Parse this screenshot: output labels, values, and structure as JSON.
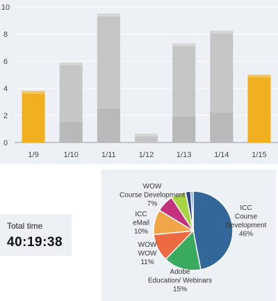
{
  "bar_panel": {
    "chart_data": {
      "type": "bar",
      "categories": [
        "1/9",
        "1/10",
        "1/11",
        "1/12",
        "1/13",
        "1/14",
        "1/15"
      ],
      "series": [
        {
          "values": [
            3.8,
            5.9,
            9.5,
            0.65,
            7.3,
            8.25,
            5.0
          ],
          "colors": [
            "#f0b020",
            "#c6c6c6",
            "#c6c6c6",
            "#c6c6c6",
            "#c6c6c6",
            "#c6c6c6",
            "#f0b020"
          ]
        },
        {
          "values": [
            0,
            1.5,
            2.5,
            0,
            1.9,
            2.2,
            0
          ]
        }
      ],
      "yticks": [
        0,
        2,
        4,
        6,
        8,
        10
      ],
      "ylim": [
        0,
        10
      ],
      "grid": true,
      "highlight_color": "#f0b020",
      "base_color": "#c6c6c6",
      "lower_segment_color": "#b9b9b9"
    }
  },
  "total_time": {
    "label": "Total time",
    "value": "40:19:38"
  },
  "pie_panel": {
    "chart_data": {
      "type": "pie",
      "slices": [
        {
          "label": "ICC Course Development",
          "percent": 46,
          "color": "#336699"
        },
        {
          "label": "Adobe Education/ Webinars",
          "percent": 15,
          "color": "#3aaa5e"
        },
        {
          "label": "WOW WOW",
          "percent": 11,
          "color": "#ee6a40"
        },
        {
          "label": "ICC eMail",
          "percent": 10,
          "color": "#f0a646"
        },
        {
          "label": "WOW Course Development",
          "percent": 7,
          "color": "#c4327e"
        },
        {
          "label": "",
          "percent": 6,
          "color": "#a8d444"
        },
        {
          "label": "",
          "percent": 2,
          "color": "#2f3f8f"
        },
        {
          "label": "",
          "percent": 1,
          "color": "#6aa3dd"
        }
      ],
      "labels": [
        {
          "lines": [
            "ICC",
            "Course",
            "Development",
            "46%"
          ]
        },
        {
          "lines": [
            "Adobe",
            "Education/ Webinars",
            "15%"
          ]
        },
        {
          "lines": [
            "WOW",
            "WOW",
            "11%"
          ]
        },
        {
          "lines": [
            "ICC",
            "eMail",
            "10%"
          ]
        },
        {
          "lines": [
            "WOW",
            "Course Development",
            "7%"
          ]
        }
      ]
    }
  }
}
